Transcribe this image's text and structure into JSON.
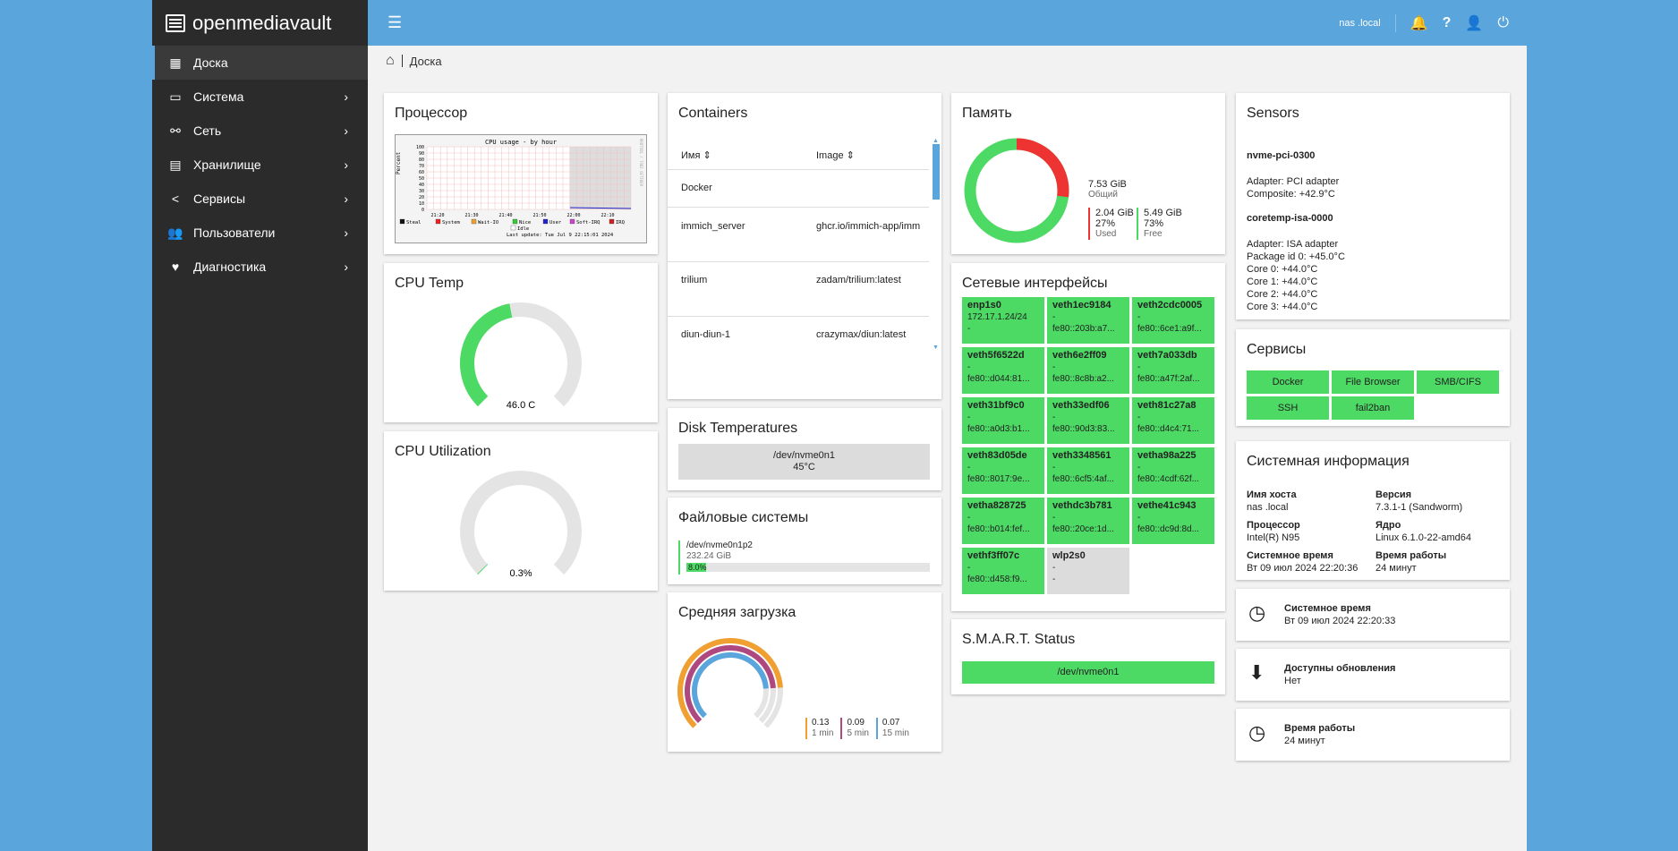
{
  "app": {
    "name": "openmediavault"
  },
  "sidebar": {
    "items": [
      {
        "label": "Доска",
        "icon": "dashboard-grid-icon"
      },
      {
        "label": "Система",
        "icon": "laptop-icon"
      },
      {
        "label": "Сеть",
        "icon": "network-icon"
      },
      {
        "label": "Хранилище",
        "icon": "storage-icon"
      },
      {
        "label": "Сервисы",
        "icon": "share-icon"
      },
      {
        "label": "Пользователи",
        "icon": "users-icon"
      },
      {
        "label": "Диагностика",
        "icon": "heartbeat-icon"
      }
    ]
  },
  "topbar": {
    "hostname": "nas .local"
  },
  "breadcrumb": {
    "label": "Доска"
  },
  "cpu": {
    "title": "Процессор",
    "graph_title": "CPU usage - by hour",
    "y_label": "Percent",
    "y_ticks": [
      "100",
      "90",
      "80",
      "70",
      "60",
      "50",
      "40",
      "30",
      "20",
      "10",
      "0"
    ],
    "x_ticks": [
      "21:20",
      "21:30",
      "21:40",
      "21:50",
      "22:00",
      "22:10"
    ],
    "legend": [
      "Steal",
      "System",
      "Wait-IO",
      "Nice",
      "User",
      "Soft-IRQ",
      "IRQ",
      "Idle"
    ],
    "last_update": "Last update: Tue Jul  9 22:15:01 2024",
    "side_label": "RRDTOOL / TOBI OETIKER"
  },
  "cpu_temp": {
    "title": "CPU Temp",
    "value": "46.0 C",
    "fraction": 0.46
  },
  "cpu_util": {
    "title": "CPU Utilization",
    "value": "0.3%",
    "fraction": 0.003
  },
  "containers": {
    "title": "Containers",
    "col_name": "Имя",
    "col_image": "Image",
    "rows": [
      {
        "name": "Docker",
        "image": ""
      },
      {
        "name": "immich_server",
        "image": "ghcr.io/immich-app/imm"
      },
      {
        "name": "trilium",
        "image": "zadam/trilium:latest"
      },
      {
        "name": "diun-diun-1",
        "image": "crazymax/diun:latest"
      }
    ]
  },
  "disk_temp": {
    "title": "Disk Temperatures",
    "device": "/dev/nvme0n1",
    "temp": "45°C"
  },
  "filesystems": {
    "title": "Файловые системы",
    "device": "/dev/nvme0n1p2",
    "size": "232.24 GiB",
    "usage": "8.0%",
    "fraction": 0.08
  },
  "load": {
    "title": "Средняя загрузка",
    "items": [
      {
        "value": "0.13",
        "label": "1 min",
        "color": "#f0a030"
      },
      {
        "value": "0.09",
        "label": "5 min",
        "color": "#b04880"
      },
      {
        "value": "0.07",
        "label": "15 min",
        "color": "#5aa5dc"
      }
    ]
  },
  "memory": {
    "title": "Память",
    "total": "7.53 GiB",
    "total_label": "Общий",
    "used": "2.04 GiB",
    "used_pct": "27%",
    "used_label": "Used",
    "free": "5.49 GiB",
    "free_pct": "73%",
    "free_label": "Free",
    "used_fraction": 0.27
  },
  "network": {
    "title": "Сетевые интерфейсы",
    "interfaces": [
      {
        "name": "enp1s0",
        "l1": "172.17.1.24/24",
        "l2": "-",
        "up": true
      },
      {
        "name": "veth1ec9184",
        "l1": "-",
        "l2": "fe80::203b:a7...",
        "up": true
      },
      {
        "name": "veth2cdc0005",
        "l1": "-",
        "l2": "fe80::6ce1:a9f...",
        "up": true
      },
      {
        "name": "veth5f6522d",
        "l1": "-",
        "l2": "fe80::d044:81...",
        "up": true
      },
      {
        "name": "veth6e2ff09",
        "l1": "-",
        "l2": "fe80::8c8b:a2...",
        "up": true
      },
      {
        "name": "veth7a033db",
        "l1": "-",
        "l2": "fe80::a47f:2af...",
        "up": true
      },
      {
        "name": "veth31bf9c0",
        "l1": "-",
        "l2": "fe80::a0d3:b1...",
        "up": true
      },
      {
        "name": "veth33edf06",
        "l1": "-",
        "l2": "fe80::90d3:83...",
        "up": true
      },
      {
        "name": "veth81c27a8",
        "l1": "-",
        "l2": "fe80::d4c4:71...",
        "up": true
      },
      {
        "name": "veth83d05de",
        "l1": "-",
        "l2": "fe80::8017:9e...",
        "up": true
      },
      {
        "name": "veth3348561",
        "l1": "-",
        "l2": "fe80::6cf5:4af...",
        "up": true
      },
      {
        "name": "vetha98a225",
        "l1": "-",
        "l2": "fe80::4cdf:62f...",
        "up": true
      },
      {
        "name": "vetha828725",
        "l1": "-",
        "l2": "fe80::b014:fef...",
        "up": true
      },
      {
        "name": "vethdc3b781",
        "l1": "-",
        "l2": "fe80::20ce:1d...",
        "up": true
      },
      {
        "name": "vethe41c943",
        "l1": "-",
        "l2": "fe80::dc9d:8d...",
        "up": true
      },
      {
        "name": "vethf3ff07c",
        "l1": "-",
        "l2": "fe80::d458:f9...",
        "up": true
      },
      {
        "name": "wlp2s0",
        "l1": "-",
        "l2": "-",
        "up": false
      }
    ]
  },
  "smart": {
    "title": "S.M.A.R.T. Status",
    "device": "/dev/nvme0n1"
  },
  "sensors": {
    "title": "Sensors",
    "chip1": "nvme-pci-0300",
    "chip1_lines": [
      "Adapter: PCI adapter",
      "Composite: +42.9°C"
    ],
    "chip2": "coretemp-isa-0000",
    "chip2_lines": [
      "Adapter: ISA adapter",
      "Package id 0: +45.0°C",
      "Core 0: +44.0°C",
      "Core 1: +44.0°C",
      "Core 2: +44.0°C",
      "Core 3: +44.0°C"
    ]
  },
  "services": {
    "title": "Сервисы",
    "items": [
      "Docker",
      "File Browser",
      "SMB/CIFS",
      "SSH",
      "fail2ban"
    ]
  },
  "sysinfo": {
    "title": "Системная информация",
    "host_label": "Имя хоста",
    "host": "nas     .local",
    "version_label": "Версия",
    "version": "7.3.1-1 (Sandworm)",
    "cpu_label": "Процессор",
    "cpu": "Intel(R) N95",
    "kernel_label": "Ядро",
    "kernel": "Linux 6.1.0-22-amd64",
    "time_label": "Системное время",
    "time": "Вт 09 июл 2024 22:20:36",
    "uptime_label": "Время работы",
    "uptime": "24 минут"
  },
  "widget_time": {
    "title": "Системное время",
    "value": "Вт 09 июл 2024 22:20:33"
  },
  "widget_updates": {
    "title": "Доступны обновления",
    "value": "Нет"
  },
  "widget_uptime": {
    "title": "Время работы",
    "value": "24 минут"
  }
}
